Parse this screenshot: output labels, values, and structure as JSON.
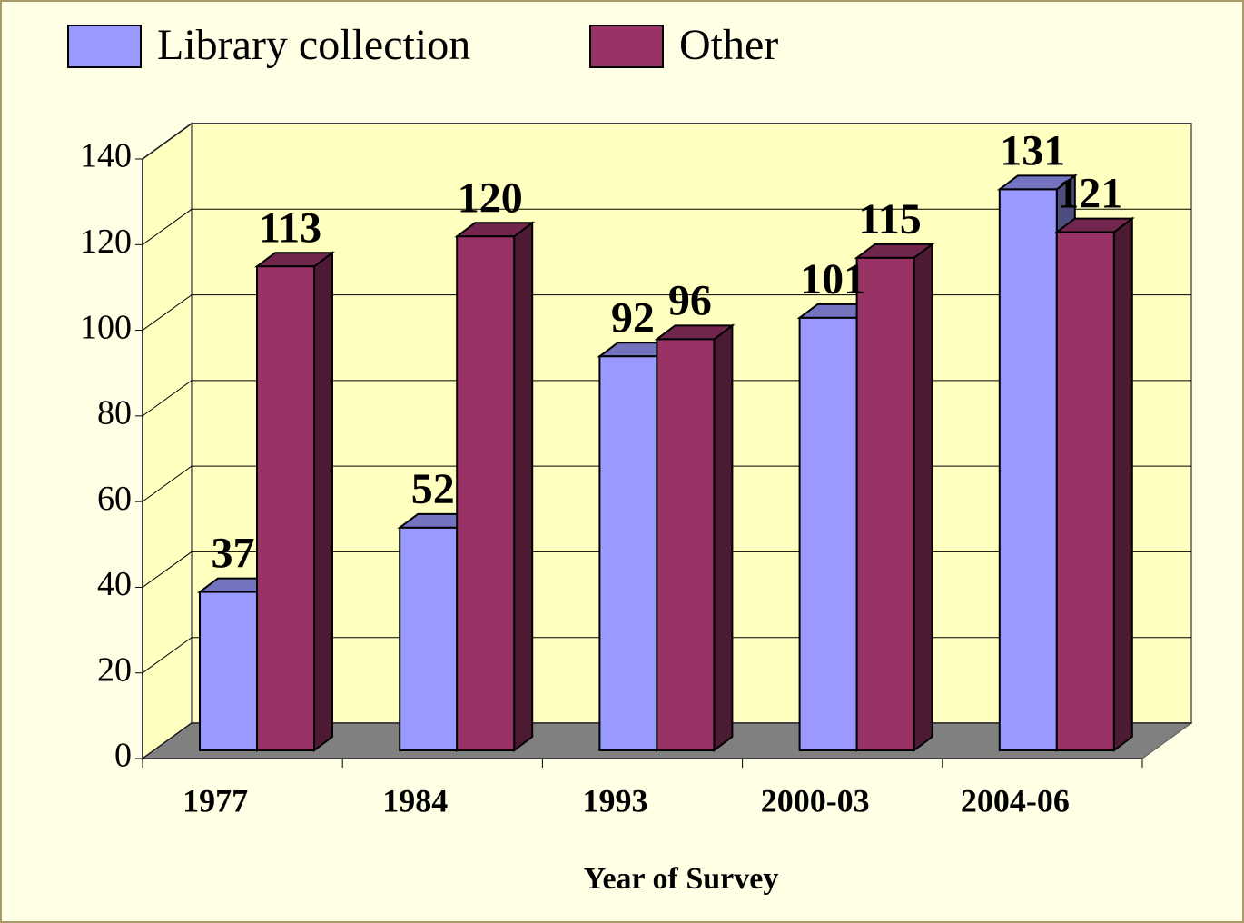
{
  "chart_data": {
    "type": "bar3d",
    "x_label": "Year of Survey",
    "categories": [
      "1977",
      "1984",
      "1993",
      "2000-03",
      "2004-06"
    ],
    "series": [
      {
        "name": "Library collection",
        "color": "#9999ff",
        "values": [
          37,
          52,
          92,
          101,
          131
        ]
      },
      {
        "name": "Other",
        "color": "#993366",
        "values": [
          113,
          120,
          96,
          115,
          121
        ]
      }
    ],
    "ylim": [
      0,
      140
    ],
    "yticks": [
      0,
      20,
      40,
      60,
      80,
      100,
      120,
      140
    ],
    "grid": true,
    "legend": "top"
  }
}
